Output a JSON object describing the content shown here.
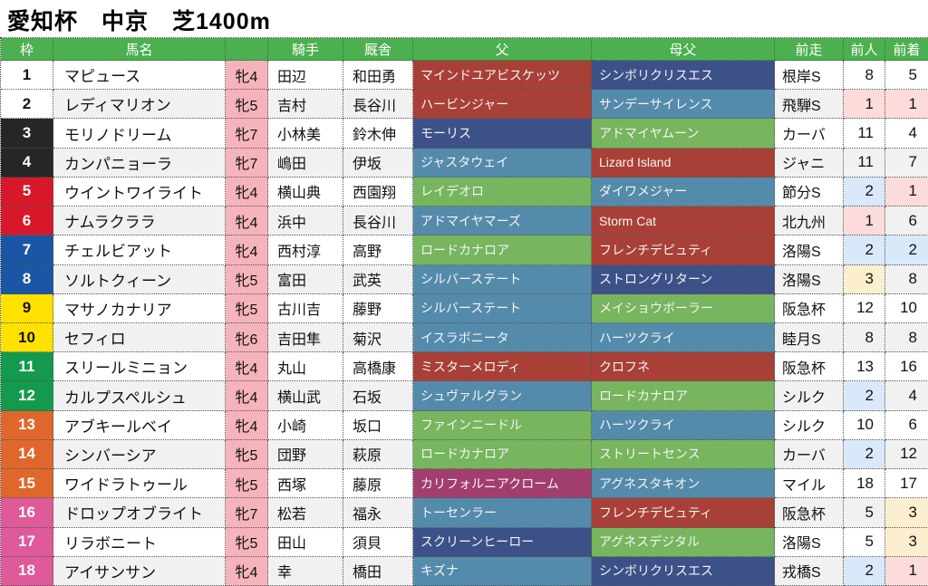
{
  "title": "愛知杯　中京　芝1400m",
  "columns": [
    {
      "key": "waku",
      "label": "枠"
    },
    {
      "key": "name",
      "label": "馬名"
    },
    {
      "key": "sexage",
      "label": ""
    },
    {
      "key": "jockey",
      "label": "騎手"
    },
    {
      "key": "stable",
      "label": "厩舎"
    },
    {
      "key": "sire",
      "label": "父"
    },
    {
      "key": "damsire",
      "label": "母父"
    },
    {
      "key": "prev_race",
      "label": "前走"
    },
    {
      "key": "prev_pop",
      "label": "前人"
    },
    {
      "key": "prev_fin",
      "label": "前着"
    }
  ],
  "colors": {
    "header_bg": "#4CAF50",
    "sex_col_bg": "#F5B4BB",
    "stripe_bg": "#F1F1F2",
    "frame": {
      "white": {
        "bg": "#FFFFFF",
        "fg": "#111111"
      },
      "black": {
        "bg": "#262626",
        "fg": "#FFFFFF"
      },
      "red": {
        "bg": "#D7182A",
        "fg": "#FFFFFF"
      },
      "blue": {
        "bg": "#1A56A4",
        "fg": "#FFFFFF"
      },
      "yellow": {
        "bg": "#FFE100",
        "fg": "#111111"
      },
      "green": {
        "bg": "#149A4D",
        "fg": "#FFFFFF"
      },
      "orange": {
        "bg": "#E0672B",
        "fg": "#FFFFFF"
      },
      "pink": {
        "bg": "#DE5A99",
        "fg": "#FFFFFF"
      }
    },
    "sire": {
      "darkred": "#A84038",
      "navy": "#3D5189",
      "steelblue": "#548BAB",
      "green": "#77B55E",
      "magenta": "#A23E6D"
    },
    "rank_highlight": {
      "1": "#FBDCDB",
      "2": "#D9E9F9",
      "3": "#FCEFD0"
    }
  },
  "horses": [
    {
      "num": "1",
      "frame": "white",
      "name": "マピュース",
      "sexage": "牝4",
      "jockey": "田辺",
      "stable": "和田勇",
      "sire": "マインドユアビスケッツ",
      "sire_color": "darkred",
      "damsire": "シンボリクリスエス",
      "damsire_color": "navy",
      "prev_race": "根岸S",
      "prev_pop": "8",
      "prev_fin": "5"
    },
    {
      "num": "2",
      "frame": "white",
      "name": "レディマリオン",
      "sexage": "牝5",
      "jockey": "吉村",
      "stable": "長谷川",
      "sire": "ハービンジャー",
      "sire_color": "darkred",
      "damsire": "サンデーサイレンス",
      "damsire_color": "steelblue",
      "prev_race": "飛騨S",
      "prev_pop": "1",
      "prev_fin": "1"
    },
    {
      "num": "3",
      "frame": "black",
      "name": "モリノドリーム",
      "sexage": "牝7",
      "jockey": "小林美",
      "stable": "鈴木伸",
      "sire": "モーリス",
      "sire_color": "navy",
      "damsire": "アドマイヤムーン",
      "damsire_color": "green",
      "prev_race": "カーバ",
      "prev_pop": "11",
      "prev_fin": "4"
    },
    {
      "num": "4",
      "frame": "black",
      "name": "カンパニョーラ",
      "sexage": "牝7",
      "jockey": "嶋田",
      "stable": "伊坂",
      "sire": "ジャスタウェイ",
      "sire_color": "steelblue",
      "damsire": "Lizard Island",
      "damsire_color": "darkred",
      "prev_race": "ジャニ",
      "prev_pop": "11",
      "prev_fin": "7"
    },
    {
      "num": "5",
      "frame": "red",
      "name": "ウイントワイライト",
      "sexage": "牝4",
      "jockey": "横山典",
      "stable": "西園翔",
      "sire": "レイデオロ",
      "sire_color": "green",
      "damsire": "ダイワメジャー",
      "damsire_color": "steelblue",
      "prev_race": "節分S",
      "prev_pop": "2",
      "prev_fin": "1"
    },
    {
      "num": "6",
      "frame": "red",
      "name": "ナムラクララ",
      "sexage": "牝4",
      "jockey": "浜中",
      "stable": "長谷川",
      "sire": "アドマイヤマーズ",
      "sire_color": "steelblue",
      "damsire": "Storm Cat",
      "damsire_color": "darkred",
      "prev_race": "北九州",
      "prev_pop": "1",
      "prev_fin": "6"
    },
    {
      "num": "7",
      "frame": "blue",
      "name": "チェルビアット",
      "sexage": "牝4",
      "jockey": "西村淳",
      "stable": "高野",
      "sire": "ロードカナロア",
      "sire_color": "green",
      "damsire": "フレンチデピュティ",
      "damsire_color": "darkred",
      "prev_race": "洛陽S",
      "prev_pop": "2",
      "prev_fin": "2"
    },
    {
      "num": "8",
      "frame": "blue",
      "name": "ソルトクィーン",
      "sexage": "牝5",
      "jockey": "富田",
      "stable": "武英",
      "sire": "シルバーステート",
      "sire_color": "steelblue",
      "damsire": "ストロングリターン",
      "damsire_color": "navy",
      "prev_race": "洛陽S",
      "prev_pop": "3",
      "prev_fin": "8"
    },
    {
      "num": "9",
      "frame": "yellow",
      "name": "マサノカナリア",
      "sexage": "牝5",
      "jockey": "古川吉",
      "stable": "藤野",
      "sire": "シルバーステート",
      "sire_color": "steelblue",
      "damsire": "メイショウボーラー",
      "damsire_color": "green",
      "prev_race": "阪急杯",
      "prev_pop": "12",
      "prev_fin": "10"
    },
    {
      "num": "10",
      "frame": "yellow",
      "name": "セフィロ",
      "sexage": "牝6",
      "jockey": "吉田隼",
      "stable": "菊沢",
      "sire": "イスラボニータ",
      "sire_color": "steelblue",
      "damsire": "ハーツクライ",
      "damsire_color": "steelblue",
      "prev_race": "睦月S",
      "prev_pop": "8",
      "prev_fin": "8"
    },
    {
      "num": "11",
      "frame": "green",
      "name": "スリールミニョン",
      "sexage": "牝4",
      "jockey": "丸山",
      "stable": "高橋康",
      "sire": "ミスターメロディ",
      "sire_color": "darkred",
      "damsire": "クロフネ",
      "damsire_color": "darkred",
      "prev_race": "阪急杯",
      "prev_pop": "13",
      "prev_fin": "16"
    },
    {
      "num": "12",
      "frame": "green",
      "name": "カルプスペルシュ",
      "sexage": "牝4",
      "jockey": "横山武",
      "stable": "石坂",
      "sire": "シュヴァルグラン",
      "sire_color": "steelblue",
      "damsire": "ロードカナロア",
      "damsire_color": "green",
      "prev_race": "シルク",
      "prev_pop": "2",
      "prev_fin": "4"
    },
    {
      "num": "13",
      "frame": "orange",
      "name": "アブキールベイ",
      "sexage": "牝4",
      "jockey": "小崎",
      "stable": "坂口",
      "sire": "ファインニードル",
      "sire_color": "green",
      "damsire": "ハーツクライ",
      "damsire_color": "steelblue",
      "prev_race": "シルク",
      "prev_pop": "10",
      "prev_fin": "6"
    },
    {
      "num": "14",
      "frame": "orange",
      "name": "シンバーシア",
      "sexage": "牝5",
      "jockey": "団野",
      "stable": "萩原",
      "sire": "ロードカナロア",
      "sire_color": "green",
      "damsire": "ストリートセンス",
      "damsire_color": "green",
      "prev_race": "カーバ",
      "prev_pop": "2",
      "prev_fin": "12"
    },
    {
      "num": "15",
      "frame": "orange",
      "name": "ワイドラトゥール",
      "sexage": "牝5",
      "jockey": "西塚",
      "stable": "藤原",
      "sire": "カリフォルニアクローム",
      "sire_color": "magenta",
      "damsire": "アグネスタキオン",
      "damsire_color": "steelblue",
      "prev_race": "マイル",
      "prev_pop": "18",
      "prev_fin": "17"
    },
    {
      "num": "16",
      "frame": "pink",
      "name": "ドロップオブライト",
      "sexage": "牝7",
      "jockey": "松若",
      "stable": "福永",
      "sire": "トーセンラー",
      "sire_color": "steelblue",
      "damsire": "フレンチデピュティ",
      "damsire_color": "darkred",
      "prev_race": "阪急杯",
      "prev_pop": "5",
      "prev_fin": "3"
    },
    {
      "num": "17",
      "frame": "pink",
      "name": "リラボニート",
      "sexage": "牝5",
      "jockey": "田山",
      "stable": "須貝",
      "sire": "スクリーンヒーロー",
      "sire_color": "navy",
      "damsire": "アグネスデジタル",
      "damsire_color": "green",
      "prev_race": "洛陽S",
      "prev_pop": "5",
      "prev_fin": "3"
    },
    {
      "num": "18",
      "frame": "pink",
      "name": "アイサンサン",
      "sexage": "牝4",
      "jockey": "幸",
      "stable": "橋田",
      "sire": "キズナ",
      "sire_color": "steelblue",
      "damsire": "シンボリクリスエス",
      "damsire_color": "navy",
      "prev_race": "戎橋S",
      "prev_pop": "2",
      "prev_fin": "1"
    }
  ]
}
